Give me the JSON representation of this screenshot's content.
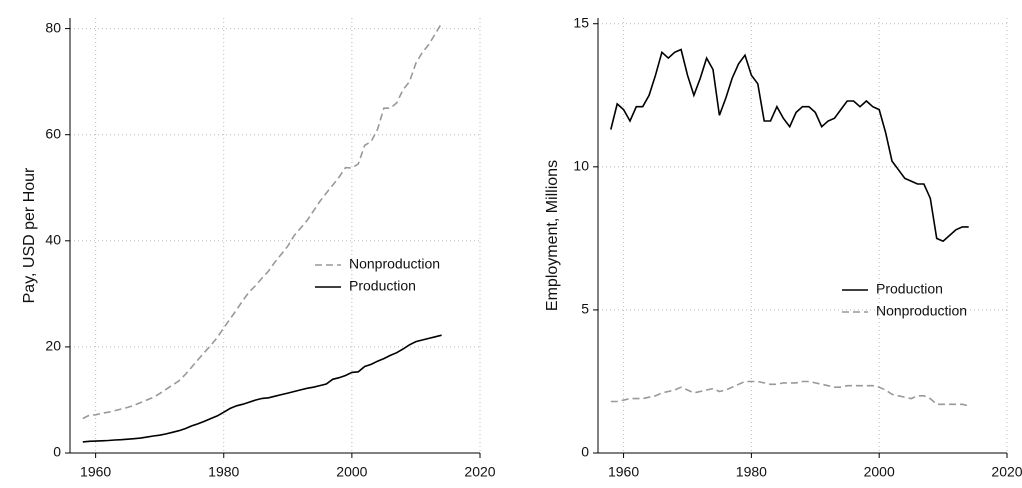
{
  "chart_data": [
    {
      "type": "line",
      "ylabel": "Pay, USD per Hour",
      "x": [
        1958,
        1959,
        1960,
        1961,
        1962,
        1963,
        1964,
        1965,
        1966,
        1967,
        1968,
        1969,
        1970,
        1971,
        1972,
        1973,
        1974,
        1975,
        1976,
        1977,
        1978,
        1979,
        1980,
        1981,
        1982,
        1983,
        1984,
        1985,
        1986,
        1987,
        1988,
        1989,
        1990,
        1991,
        1992,
        1993,
        1994,
        1995,
        1996,
        1997,
        1998,
        1999,
        2000,
        2001,
        2002,
        2003,
        2004,
        2005,
        2006,
        2007,
        2008,
        2009,
        2010,
        2011,
        2012,
        2013,
        2014
      ],
      "series": [
        {
          "name": "Nonproduction",
          "color": "#999999",
          "dashed": true,
          "values": [
            6.5,
            7.1,
            7.2,
            7.5,
            7.7,
            8.0,
            8.3,
            8.6,
            9.0,
            9.5,
            10.0,
            10.5,
            11.2,
            12.0,
            12.8,
            13.6,
            14.8,
            16.2,
            17.6,
            19.0,
            20.3,
            21.8,
            23.6,
            25.3,
            27.0,
            28.8,
            30.4,
            31.6,
            33.0,
            34.3,
            36.0,
            37.5,
            39.0,
            41.0,
            42.4,
            43.8,
            45.6,
            47.4,
            49.0,
            50.5,
            52.0,
            53.8,
            53.7,
            54.5,
            58.0,
            58.7,
            61.0,
            65.0,
            65.0,
            66.0,
            68.5,
            70.0,
            73.5,
            75.5,
            77.0,
            79.0,
            81.0
          ]
        },
        {
          "name": "Production",
          "color": "#000000",
          "dashed": false,
          "values": [
            2.1,
            2.2,
            2.25,
            2.3,
            2.35,
            2.45,
            2.5,
            2.6,
            2.7,
            2.8,
            3.0,
            3.2,
            3.35,
            3.6,
            3.9,
            4.2,
            4.6,
            5.1,
            5.5,
            6.0,
            6.5,
            7.0,
            7.7,
            8.4,
            8.9,
            9.2,
            9.6,
            10.0,
            10.3,
            10.4,
            10.7,
            11.0,
            11.3,
            11.6,
            11.9,
            12.2,
            12.4,
            12.7,
            13.0,
            13.9,
            14.2,
            14.6,
            15.2,
            15.3,
            16.3,
            16.7,
            17.3,
            17.8,
            18.4,
            18.9,
            19.6,
            20.4,
            21.0,
            21.3,
            21.6,
            21.9,
            22.2
          ]
        }
      ],
      "xlim": [
        1956,
        2020
      ],
      "xticks": [
        1960,
        1980,
        2000,
        2020
      ],
      "ylim": [
        0,
        82
      ],
      "yticks": [
        0,
        20,
        40,
        60,
        80
      ],
      "grid": true,
      "legend": "center right"
    },
    {
      "type": "line",
      "ylabel": "Employment, Millions",
      "x": [
        1958,
        1959,
        1960,
        1961,
        1962,
        1963,
        1964,
        1965,
        1966,
        1967,
        1968,
        1969,
        1970,
        1971,
        1972,
        1973,
        1974,
        1975,
        1976,
        1977,
        1978,
        1979,
        1980,
        1981,
        1982,
        1983,
        1984,
        1985,
        1986,
        1987,
        1988,
        1989,
        1990,
        1991,
        1992,
        1993,
        1994,
        1995,
        1996,
        1997,
        1998,
        1999,
        2000,
        2001,
        2002,
        2003,
        2004,
        2005,
        2006,
        2007,
        2008,
        2009,
        2010,
        2011,
        2012,
        2013,
        2014
      ],
      "series": [
        {
          "name": "Production",
          "color": "#000000",
          "dashed": false,
          "values": [
            11.3,
            12.2,
            12.0,
            11.6,
            12.1,
            12.1,
            12.5,
            13.2,
            14.0,
            13.8,
            14.0,
            14.1,
            13.2,
            12.5,
            13.1,
            13.8,
            13.4,
            11.8,
            12.4,
            13.1,
            13.6,
            13.9,
            13.2,
            12.9,
            11.6,
            11.6,
            12.1,
            11.7,
            11.4,
            11.9,
            12.1,
            12.1,
            11.9,
            11.4,
            11.6,
            11.7,
            12.0,
            12.3,
            12.3,
            12.1,
            12.3,
            12.1,
            12.0,
            11.2,
            10.2,
            9.9,
            9.6,
            9.5,
            9.4,
            9.4,
            8.9,
            7.5,
            7.4,
            7.6,
            7.8,
            7.9,
            7.9
          ]
        },
        {
          "name": "Nonproduction",
          "color": "#999999",
          "dashed": true,
          "values": [
            1.8,
            1.8,
            1.85,
            1.9,
            1.9,
            1.9,
            1.95,
            2.0,
            2.1,
            2.15,
            2.2,
            2.3,
            2.2,
            2.1,
            2.15,
            2.2,
            2.25,
            2.15,
            2.2,
            2.3,
            2.4,
            2.5,
            2.5,
            2.5,
            2.45,
            2.4,
            2.4,
            2.45,
            2.45,
            2.45,
            2.5,
            2.5,
            2.45,
            2.4,
            2.35,
            2.3,
            2.3,
            2.35,
            2.35,
            2.35,
            2.35,
            2.35,
            2.3,
            2.2,
            2.05,
            2.0,
            1.95,
            1.9,
            2.0,
            2.0,
            1.9,
            1.7,
            1.7,
            1.7,
            1.7,
            1.7,
            1.65
          ]
        }
      ],
      "xlim": [
        1956,
        2020
      ],
      "xticks": [
        1960,
        1980,
        2000,
        2020
      ],
      "ylim": [
        0,
        15.2
      ],
      "yticks": [
        0,
        5,
        10,
        15
      ],
      "grid": true,
      "legend": "lower right"
    }
  ]
}
